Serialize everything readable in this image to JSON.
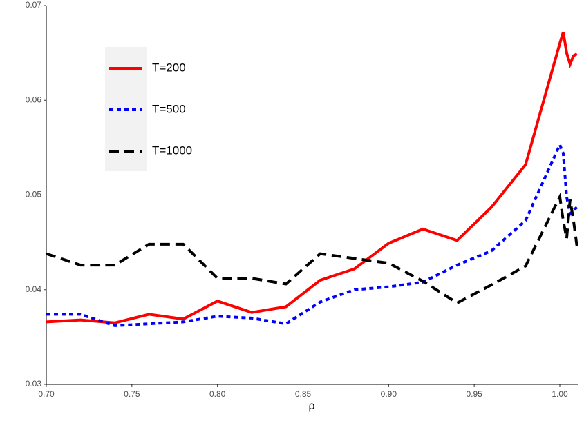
{
  "chart_data": {
    "type": "line",
    "x_label": "ρ",
    "x": [
      0.7,
      0.72,
      0.74,
      0.76,
      0.78,
      0.8,
      0.82,
      0.84,
      0.86,
      0.88,
      0.9,
      0.92,
      0.94,
      0.96,
      0.98,
      1.0,
      1.002,
      1.004,
      1.006,
      1.008,
      1.01
    ],
    "series": [
      {
        "name": "T=200",
        "color": "#ff0000",
        "dash": "solid",
        "values": [
          0.0366,
          0.0368,
          0.0365,
          0.0374,
          0.0369,
          0.0388,
          0.0376,
          0.0382,
          0.041,
          0.0422,
          0.0449,
          0.0464,
          0.0452,
          0.0487,
          0.0532,
          0.066,
          0.0672,
          0.065,
          0.0638,
          0.0647,
          0.0649
        ]
      },
      {
        "name": "T=500",
        "color": "#0000ff",
        "dash": "dotted",
        "values": [
          0.0374,
          0.0374,
          0.0362,
          0.0364,
          0.0366,
          0.0372,
          0.037,
          0.0364,
          0.0387,
          0.04,
          0.0403,
          0.0408,
          0.0426,
          0.0441,
          0.0473,
          0.0553,
          0.0544,
          0.0498,
          0.048,
          0.0484,
          0.0487
        ]
      },
      {
        "name": "T=1000",
        "color": "#000000",
        "dash": "dashed",
        "values": [
          0.0438,
          0.0426,
          0.0426,
          0.0448,
          0.0448,
          0.0412,
          0.0412,
          0.0406,
          0.0438,
          0.0433,
          0.0428,
          0.0409,
          0.0386,
          0.0405,
          0.0425,
          0.0498,
          0.0473,
          0.0454,
          0.0495,
          0.0473,
          0.0446
        ]
      }
    ],
    "xlim": [
      0.7,
      1.0105
    ],
    "ylim": [
      0.03,
      0.07
    ],
    "xticks": [
      {
        "value": 0.7,
        "label": "0.70"
      },
      0.75,
      {
        "value": 0.8,
        "label": "0.80"
      },
      0.85,
      {
        "value": 0.9,
        "label": "0.90"
      },
      0.95,
      {
        "value": 1.0,
        "label": "1.00"
      }
    ],
    "yticks": [
      0.03,
      0.04,
      0.05,
      0.06,
      0.07
    ],
    "grid": false,
    "legend": "upper left"
  }
}
